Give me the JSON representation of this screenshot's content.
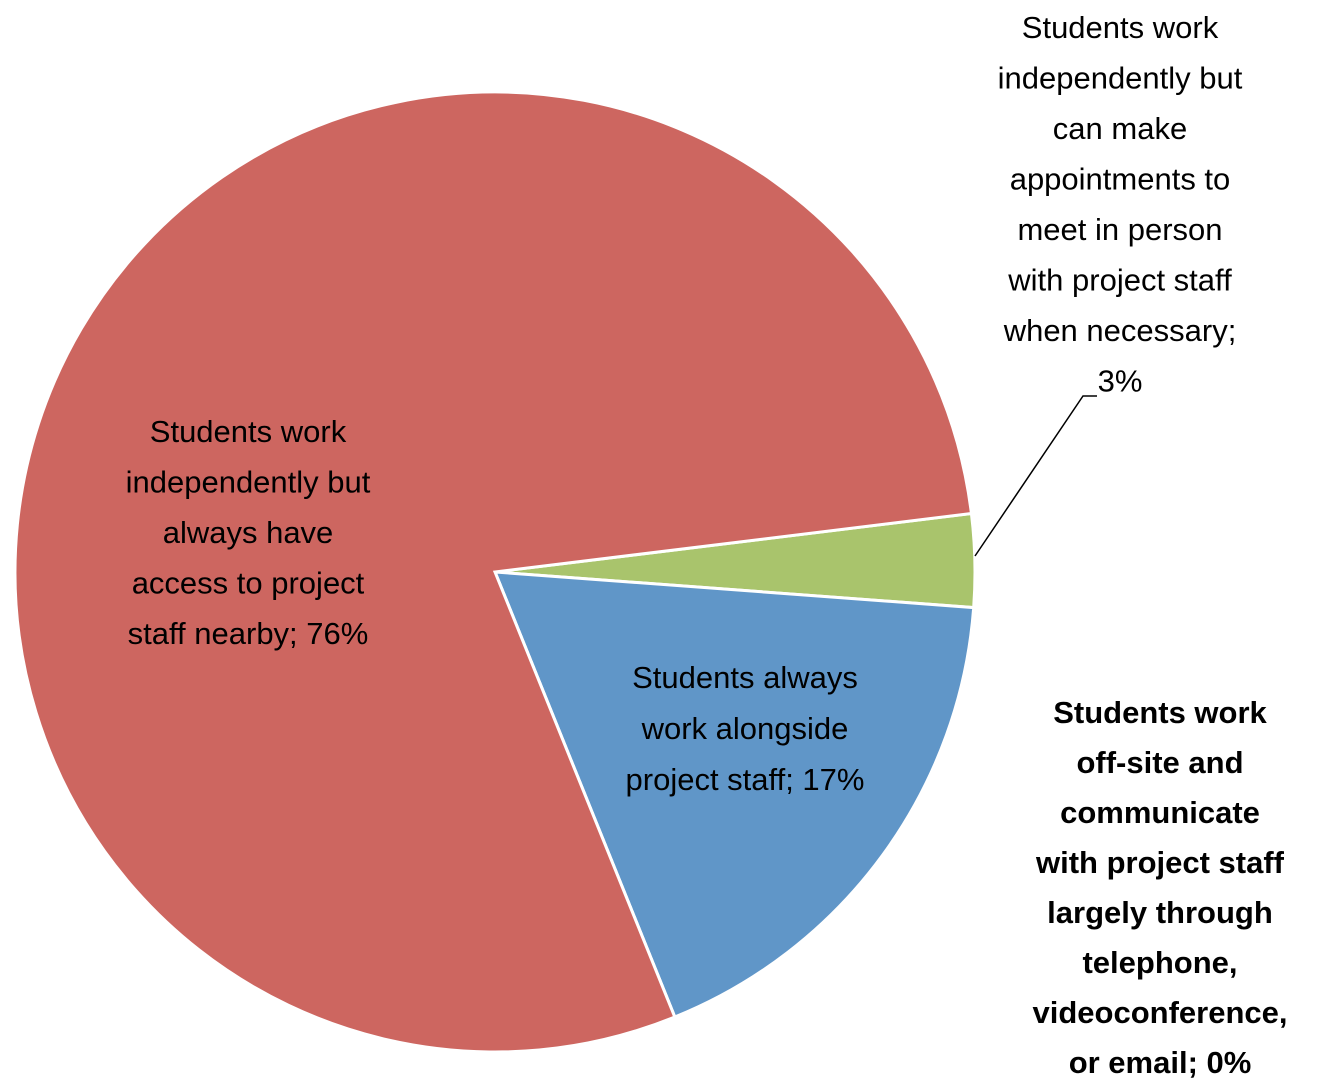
{
  "chart_data": {
    "type": "pie",
    "values": [
      3,
      17,
      0,
      76
    ],
    "colors": [
      "#a9c46c",
      "#6096c8",
      "#8064a2",
      "#cd6660"
    ],
    "value_labels": [
      [
        "Students work",
        "independently but",
        "can make",
        "appointments to",
        "meet in person",
        "with project staff",
        "when necessary;",
        "3%"
      ],
      [
        "Students always",
        "work alongside",
        "project staff; 17%"
      ],
      [
        "Students work",
        "off-site and",
        "communicate",
        "with project staff",
        "largely through",
        "telephone,",
        "videoconference,",
        "or email; 0%"
      ],
      [
        "Students work",
        "independently but",
        "always have",
        "access to project",
        "staff nearby; 76%"
      ]
    ]
  }
}
